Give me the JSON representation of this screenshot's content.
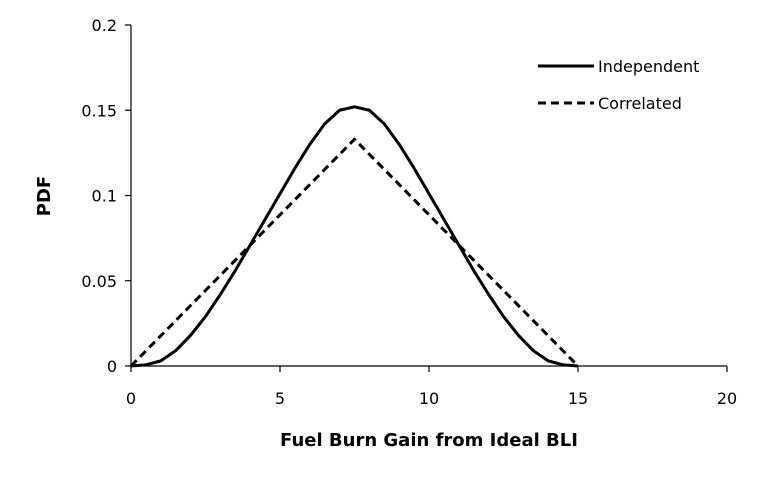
{
  "chart_data": {
    "type": "line",
    "title": "",
    "xlabel": "Fuel Burn Gain from Ideal BLI",
    "ylabel": "PDF",
    "xlim": [
      0,
      20
    ],
    "ylim": [
      0,
      0.2
    ],
    "x_ticks": [
      "0",
      "5",
      "10",
      "15",
      "20"
    ],
    "y_ticks": [
      "0",
      "0.05",
      "0.1",
      "0.15",
      "0.2"
    ],
    "grid": false,
    "legend_position": "top-right",
    "series": [
      {
        "name": "Independent",
        "style": "solid",
        "color": "#000000",
        "x": [
          0,
          0.5,
          1,
          1.5,
          2,
          2.5,
          3,
          3.5,
          4,
          4.5,
          5,
          5.5,
          6,
          6.5,
          7,
          7.5,
          8,
          8.5,
          9,
          9.5,
          10,
          10.5,
          11,
          11.5,
          12,
          12.5,
          13,
          13.5,
          14,
          14.5,
          15
        ],
        "y": [
          0,
          0.0007,
          0.003,
          0.009,
          0.018,
          0.029,
          0.042,
          0.056,
          0.071,
          0.086,
          0.101,
          0.116,
          0.13,
          0.142,
          0.15,
          0.152,
          0.15,
          0.142,
          0.13,
          0.116,
          0.101,
          0.086,
          0.071,
          0.056,
          0.042,
          0.029,
          0.018,
          0.009,
          0.003,
          0.0007,
          0
        ]
      },
      {
        "name": "Correlated",
        "style": "dashed",
        "color": "#000000",
        "x": [
          0,
          7.5,
          15
        ],
        "y": [
          0,
          0.133,
          0
        ]
      }
    ]
  }
}
